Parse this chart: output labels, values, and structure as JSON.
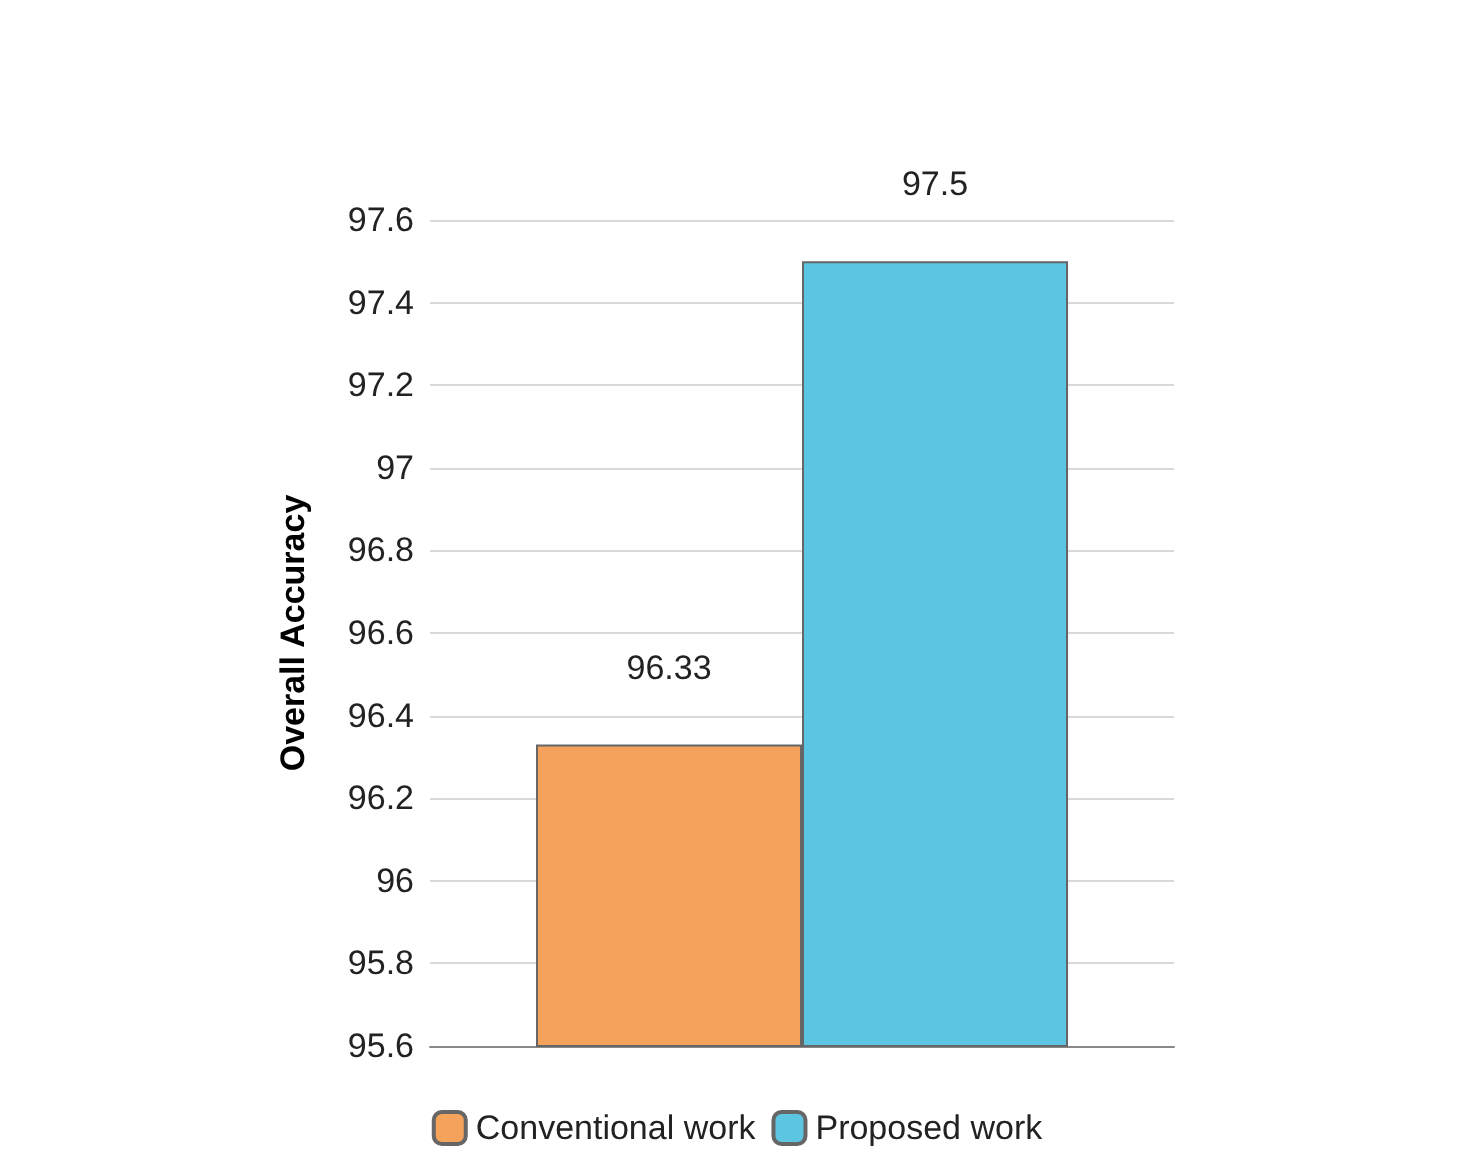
{
  "chart_data": {
    "type": "bar",
    "ylabel": "Overall Accuracy",
    "categories": [
      null
    ],
    "series": [
      {
        "name": "Conventional work",
        "color": "#f5a25d",
        "values": [
          96.33
        ]
      },
      {
        "name": "Proposed work",
        "color": "#5cc6e2",
        "values": [
          97.5
        ]
      }
    ],
    "ylim": [
      95.6,
      97.6
    ],
    "yticks": [
      95.6,
      95.8,
      96,
      96.2,
      96.4,
      96.6,
      96.8,
      97,
      97.2,
      97.4,
      97.6
    ],
    "grid": "y",
    "legend": "bottom",
    "data_labels": true
  }
}
